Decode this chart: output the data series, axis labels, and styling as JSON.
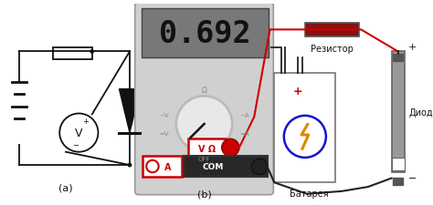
{
  "bg_color": "#ffffff",
  "title_a": "(a)",
  "title_b": "(b)",
  "display_text": "0.692",
  "label_resistor": "Резистор",
  "label_diode": "Диод",
  "label_battery": "Батарея",
  "label_vom": "V Ω",
  "label_com": "COM",
  "label_a": "A",
  "label_off": "OFF",
  "label_ohm": "Ω",
  "label_acv": "~V",
  "label_aca": "~A",
  "label_dcv": "=V",
  "label_dca": "=A",
  "multimeter_body": "#d0d0d0",
  "display_bg": "#787878",
  "display_text_color": "#111111",
  "resistor_color": "#8b1010",
  "battery_blue": "#1515cc",
  "battery_orange": "#dd8800",
  "red_color": "#cc0000",
  "black_color": "#111111",
  "gray_color": "#888888",
  "diode_gray": "#999999",
  "wire_red": "#cc0000",
  "wire_black": "#222222"
}
